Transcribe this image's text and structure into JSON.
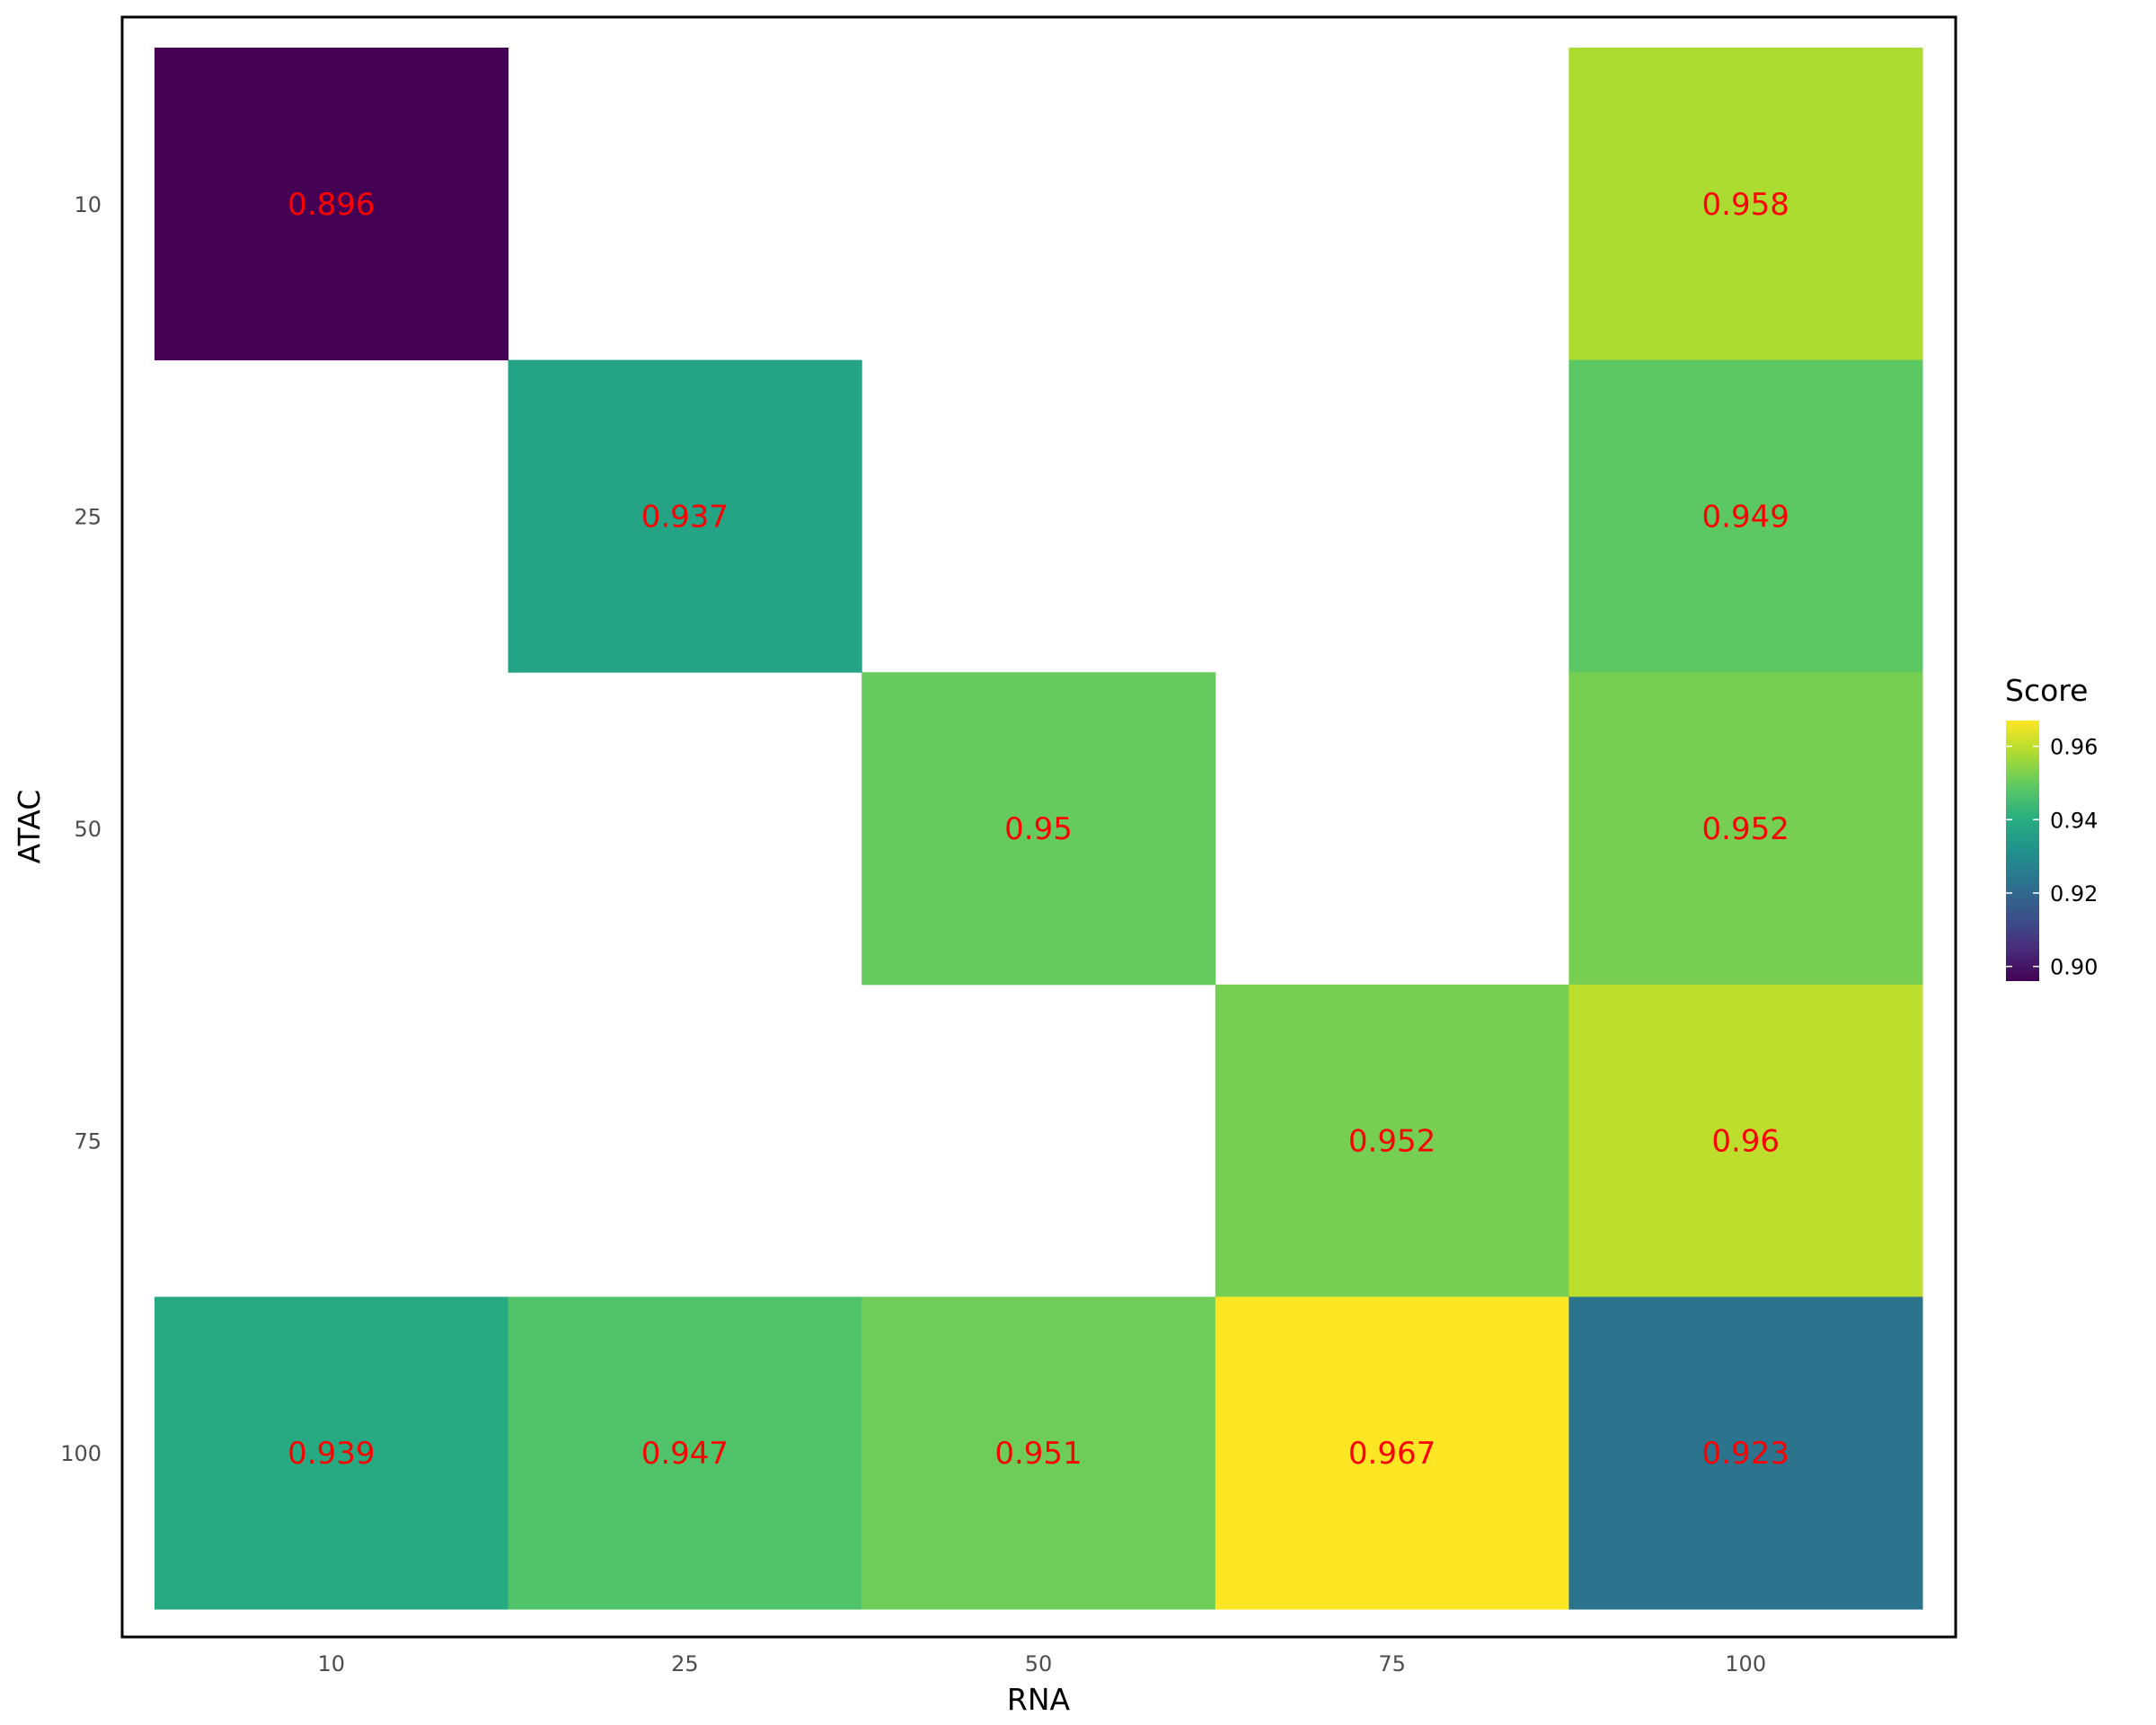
{
  "chart_data": {
    "type": "heatmap",
    "xlabel": "RNA",
    "ylabel": "ATAC",
    "x_categories": [
      "10",
      "25",
      "50",
      "75",
      "100"
    ],
    "y_categories": [
      "10",
      "25",
      "50",
      "75",
      "100"
    ],
    "cells": [
      {
        "x": "10",
        "y": "10",
        "value": 0.896,
        "label": "0.896"
      },
      {
        "x": "100",
        "y": "10",
        "value": 0.958,
        "label": "0.958"
      },
      {
        "x": "25",
        "y": "25",
        "value": 0.937,
        "label": "0.937"
      },
      {
        "x": "100",
        "y": "25",
        "value": 0.949,
        "label": "0.949"
      },
      {
        "x": "50",
        "y": "50",
        "value": 0.95,
        "label": "0.95"
      },
      {
        "x": "100",
        "y": "50",
        "value": 0.952,
        "label": "0.952"
      },
      {
        "x": "75",
        "y": "75",
        "value": 0.952,
        "label": "0.952"
      },
      {
        "x": "100",
        "y": "75",
        "value": 0.96,
        "label": "0.96"
      },
      {
        "x": "10",
        "y": "100",
        "value": 0.939,
        "label": "0.939"
      },
      {
        "x": "25",
        "y": "100",
        "value": 0.947,
        "label": "0.947"
      },
      {
        "x": "50",
        "y": "100",
        "value": 0.951,
        "label": "0.951"
      },
      {
        "x": "75",
        "y": "100",
        "value": 0.967,
        "label": "0.967"
      },
      {
        "x": "100",
        "y": "100",
        "value": 0.923,
        "label": "0.923"
      }
    ],
    "legend": {
      "title": "Score",
      "position": "right",
      "colormap": "viridis",
      "range": [
        0.896,
        0.967
      ],
      "ticks": [
        0.9,
        0.92,
        0.94,
        0.96
      ],
      "tick_labels": [
        "0.90",
        "0.92",
        "0.94",
        "0.96"
      ]
    },
    "label_color": "#ff0000",
    "grid": false,
    "panel_border": true
  }
}
